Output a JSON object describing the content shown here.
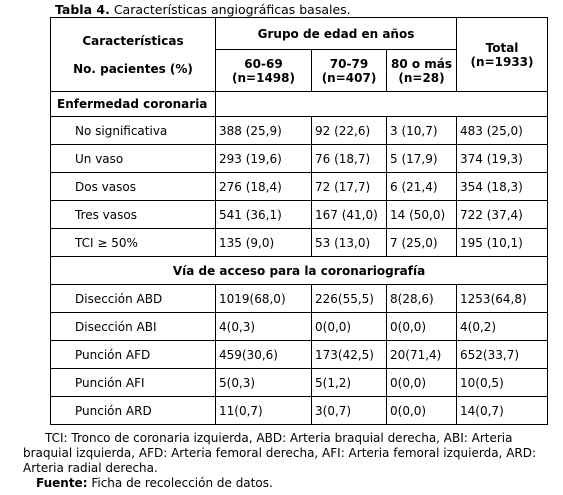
{
  "caption": {
    "label": "Tabla 4.",
    "text": "Características angiográficas basales."
  },
  "header": {
    "col1_line1": "Características",
    "col1_line2": "No. pacientes (%)",
    "group_label": "Grupo de edad en años",
    "groups": [
      {
        "line1": "60-69",
        "line2": "(n=1498)"
      },
      {
        "line1": "70-79",
        "line2": "(n=407)"
      },
      {
        "line1": "80 o más",
        "line2": "(n=28)"
      }
    ],
    "total_line1": "Total",
    "total_line2": "(n=1933)"
  },
  "section1": {
    "title": "Enfermedad coronaria",
    "rows": [
      {
        "label": "No significativa",
        "c1": "388 (25,9)",
        "c2": "92  (22,6)",
        "c3": "3  (10,7)",
        "total": "483  (25,0)"
      },
      {
        "label": "Un vaso",
        "c1": "293 (19,6)",
        "c2": "76  (18,7)",
        "c3": "5  (17,9)",
        "total": "374  (19,3)"
      },
      {
        "label": "Dos vasos",
        "c1": "276 (18,4)",
        "c2": "72  (17,7)",
        "c3": "6  (21,4)",
        "total": "354  (18,3)"
      },
      {
        "label": "Tres vasos",
        "c1": "541 (36,1)",
        "c2": "167 (41,0)",
        "c3": "14 (50,0)",
        "total": "722  (37,4)"
      },
      {
        "label": "TCI ≥ 50%",
        "c1": "135 (9,0)",
        "c2": "53 (13,0)",
        "c3": "7  (25,0)",
        "total": "195  (10,1)"
      }
    ]
  },
  "section2": {
    "title": "Vía de acceso para la coronariografía",
    "rows": [
      {
        "label": "Disección ABD",
        "c1": "1019(68,0)",
        "c2": "226(55,5)",
        "c3": "8(28,6)",
        "total": "1253(64,8)"
      },
      {
        "label": "Disección ABI",
        "c1": "4(0,3)",
        "c2": "0(0,0)",
        "c3": "0(0,0)",
        "total": "4(0,2)"
      },
      {
        "label": "Punción AFD",
        "c1": "459(30,6)",
        "c2": "173(42,5)",
        "c3": "20(71,4)",
        "total": "652(33,7)"
      },
      {
        "label": "Punción AFI",
        "c1": "5(0,3)",
        "c2": "5(1,2)",
        "c3": "0(0,0)",
        "total": "10(0,5)"
      },
      {
        "label": "Punción ARD",
        "c1": "11(0,7)",
        "c2": "3(0,7)",
        "c3": "0(0,0)",
        "total": "14(0,7)"
      }
    ]
  },
  "footnote": {
    "abbreviations": "TCI: Tronco de coronaria izquierda, ABD: Arteria braquial derecha, ABI: Arteria braquial izquierda, AFD: Arteria femoral derecha, AFI: Arteria femoral izquierda, ARD: Arteria radial derecha.",
    "source_label": "Fuente:",
    "source_text": "Ficha de recolección de datos."
  }
}
